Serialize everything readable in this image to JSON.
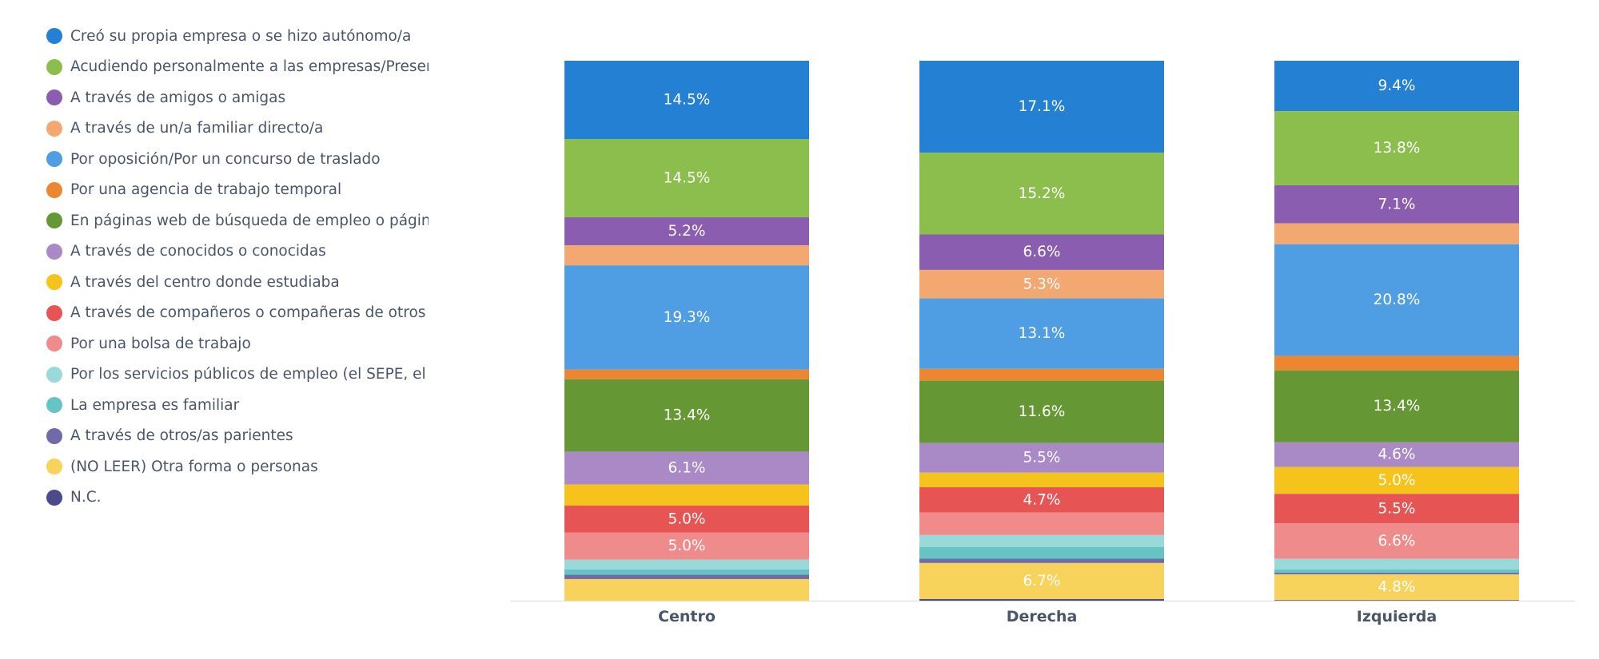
{
  "chart_data": {
    "type": "bar",
    "stacked": true,
    "normalized": true,
    "categories": [
      "Centro",
      "Derecha",
      "Izquierda"
    ],
    "legend_position": "left",
    "grid": false,
    "series": [
      {
        "name": "Creó su propia empresa o se hizo autónomo/a",
        "color": "#2380d2",
        "values": [
          14.5,
          17.1,
          9.4
        ],
        "labels": [
          "14.5%",
          "17.1%",
          "9.4%"
        ]
      },
      {
        "name": "Acudiendo personalmente a las empresas/Presentando el currículum",
        "color": "#8bbe4d",
        "values": [
          14.5,
          15.2,
          13.8
        ],
        "labels": [
          "14.5%",
          "15.2%",
          "13.8%"
        ]
      },
      {
        "name": "A través de amigos o amigas",
        "color": "#8b5db0",
        "values": [
          5.2,
          6.6,
          7.1
        ],
        "labels": [
          "5.2%",
          "6.6%",
          "7.1%"
        ]
      },
      {
        "name": "A través de un/a familiar directo/a",
        "color": "#f3a872",
        "values": [
          3.7,
          5.3,
          3.9
        ],
        "labels": [
          "",
          "5.3%",
          ""
        ]
      },
      {
        "name": "Por oposición/Por un concurso de traslado",
        "color": "#4f9de3",
        "values": [
          19.3,
          13.1,
          20.8
        ],
        "labels": [
          "19.3%",
          "13.1%",
          "20.8%"
        ]
      },
      {
        "name": "Por una agencia de trabajo temporal",
        "color": "#ed8631",
        "values": [
          1.8,
          2.2,
          2.7
        ],
        "labels": [
          "",
          "",
          ""
        ]
      },
      {
        "name": "En páginas web de búsqueda de empleo o páginas de empresas",
        "color": "#659734",
        "values": [
          13.4,
          11.6,
          13.4
        ],
        "labels": [
          "13.4%",
          "11.6%",
          "13.4%"
        ]
      },
      {
        "name": "A través de conocidos o conocidas",
        "color": "#a989c6",
        "values": [
          6.1,
          5.5,
          4.6
        ],
        "labels": [
          "6.1%",
          "5.5%",
          "4.6%"
        ]
      },
      {
        "name": "A través del centro donde estudiaba",
        "color": "#f6c21c",
        "values": [
          3.9,
          2.7,
          5.0
        ],
        "labels": [
          "",
          "",
          "5.0%"
        ]
      },
      {
        "name": "A través de compañeros o compañeras de otros trabajos",
        "color": "#e65454",
        "values": [
          5.0,
          4.7,
          5.5
        ],
        "labels": [
          "5.0%",
          "4.7%",
          "5.5%"
        ]
      },
      {
        "name": "Por una bolsa de trabajo",
        "color": "#f08b8b",
        "values": [
          5.0,
          4.2,
          6.6
        ],
        "labels": [
          "5.0%",
          "",
          "6.6%"
        ]
      },
      {
        "name": "Por los servicios públicos de empleo (el SEPE, el INEM...)",
        "color": "#9ad9d9",
        "values": [
          1.8,
          2.2,
          2.0
        ],
        "labels": [
          "",
          "",
          ""
        ]
      },
      {
        "name": "La empresa es familiar",
        "color": "#67c4c4",
        "values": [
          1.0,
          2.2,
          0.6
        ],
        "labels": [
          "",
          "",
          ""
        ]
      },
      {
        "name": "A través de otros/as parientes",
        "color": "#6f6aa8",
        "values": [
          0.8,
          0.8,
          0.3
        ],
        "labels": [
          "",
          "",
          ""
        ]
      },
      {
        "name": "(NO LEER) Otra forma o personas",
        "color": "#f7d35c",
        "values": [
          4.0,
          6.7,
          4.8
        ],
        "labels": [
          "",
          "6.7%",
          "4.8%"
        ]
      },
      {
        "name": "N.C.",
        "color": "#4b4a8a",
        "values": [
          0.0,
          0.3,
          0.1
        ],
        "labels": [
          "",
          "",
          ""
        ]
      }
    ]
  }
}
